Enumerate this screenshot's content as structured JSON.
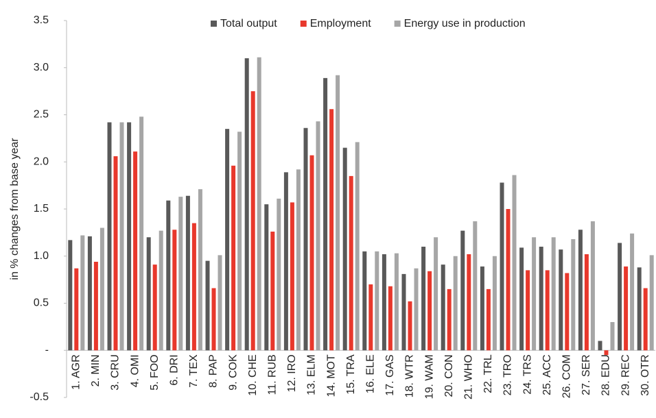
{
  "chart_data": {
    "type": "bar",
    "y_label": "in % changes from base year",
    "categories": [
      "1. AGR",
      "2. MIN",
      "3. CRU",
      "4. OMI",
      "5. FOO",
      "6. DRI",
      "7. TEX",
      "8. PAP",
      "9. COK",
      "10. CHE",
      "11. RUB",
      "12. IRO",
      "13. ELM",
      "14. MOT",
      "15. TRA",
      "16. ELE",
      "17. GAS",
      "18. WTR",
      "19. WAM",
      "20. CON",
      "21. WHO",
      "22. TRL",
      "23. TRO",
      "24. TRS",
      "25. ACC",
      "26. COM",
      "27. SER",
      "28. EDU",
      "29. REC",
      "30. OTR"
    ],
    "series": [
      {
        "name": "Total output",
        "color": "#595959",
        "values": [
          1.17,
          1.21,
          2.42,
          2.42,
          1.2,
          1.59,
          1.64,
          0.95,
          2.35,
          3.1,
          1.55,
          1.89,
          2.36,
          2.89,
          2.15,
          1.05,
          1.02,
          0.81,
          1.1,
          0.91,
          1.27,
          0.89,
          1.78,
          1.09,
          1.1,
          1.07,
          1.28,
          0.1,
          1.14,
          0.88
        ]
      },
      {
        "name": "Employment",
        "color": "#e8382c",
        "values": [
          0.87,
          0.94,
          2.06,
          2.11,
          0.91,
          1.28,
          1.35,
          0.66,
          1.96,
          2.75,
          1.26,
          1.57,
          2.07,
          2.56,
          1.85,
          0.7,
          0.68,
          0.52,
          0.84,
          0.65,
          1.02,
          0.65,
          1.5,
          0.85,
          0.85,
          0.82,
          1.02,
          -0.05,
          0.89,
          0.66
        ]
      },
      {
        "name": "Energy use in production",
        "color": "#a6a6a6",
        "values": [
          1.22,
          1.3,
          2.42,
          2.48,
          1.27,
          1.63,
          1.71,
          1.01,
          2.32,
          3.11,
          1.61,
          1.92,
          2.43,
          2.92,
          2.21,
          1.05,
          1.03,
          0.87,
          1.2,
          1.0,
          1.37,
          1.0,
          1.86,
          1.2,
          1.2,
          1.18,
          1.37,
          0.3,
          1.24,
          1.01
        ]
      }
    ],
    "ylim": [
      -0.5,
      3.5
    ],
    "yticks": [
      -0.5,
      {
        "value": 0,
        "label": "-"
      },
      0.5,
      {
        "value": 1,
        "label": "1.0"
      },
      1.5,
      {
        "value": 2,
        "label": "2.0"
      },
      2.5,
      {
        "value": 3,
        "label": "3.0"
      },
      3.5
    ],
    "grid": false,
    "legend": "top"
  }
}
